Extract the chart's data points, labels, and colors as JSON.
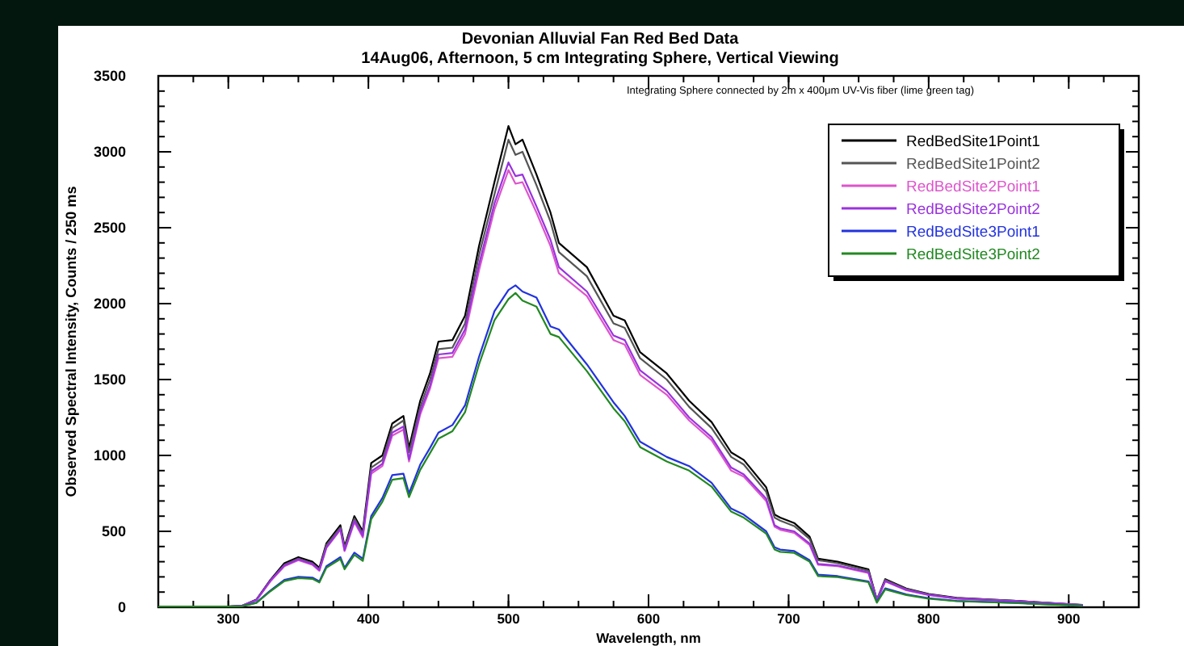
{
  "chart_data": {
    "type": "line",
    "title": "Devonian Alluvial Fan Red Bed Data",
    "subtitle": "14Aug06, Afternoon, 5 cm Integrating Sphere, Vertical Viewing",
    "xlabel": "Wavelength, nm",
    "ylabel": "Observed Spectral Intensity, Counts / 250 ms",
    "annotations": [
      "Integrating Sphere connected by 2m x 400μm UV-Vis fiber (lime green tag)"
    ],
    "x": [
      250,
      300,
      310,
      320,
      330,
      340,
      350,
      360,
      365,
      370,
      380,
      383,
      390,
      396,
      402,
      410,
      417,
      425,
      429,
      437,
      444,
      450,
      460,
      469,
      479,
      490,
      500,
      505,
      510,
      520,
      530,
      536,
      556,
      575,
      583,
      594,
      613,
      629,
      645,
      659,
      668,
      684,
      690,
      694,
      704,
      715,
      721,
      735,
      757,
      763,
      769,
      784,
      800,
      820,
      860,
      910
    ],
    "series": [
      {
        "name": "RedBedSite1Point1",
        "color": "#000000",
        "values": [
          5,
          5,
          10,
          50,
          180,
          290,
          330,
          300,
          260,
          420,
          540,
          400,
          600,
          500,
          950,
          1000,
          1210,
          1260,
          1050,
          1360,
          1540,
          1750,
          1760,
          1920,
          2380,
          2800,
          3170,
          3050,
          3080,
          2850,
          2600,
          2400,
          2240,
          1920,
          1890,
          1680,
          1540,
          1360,
          1220,
          1020,
          970,
          790,
          610,
          590,
          555,
          465,
          320,
          300,
          250,
          50,
          185,
          123,
          87,
          62,
          44,
          15
        ]
      },
      {
        "name": "RedBedSite1Point2",
        "color": "#555555",
        "values": [
          5,
          5,
          10,
          48,
          175,
          280,
          320,
          290,
          250,
          410,
          525,
          390,
          585,
          485,
          920,
          970,
          1180,
          1230,
          1020,
          1320,
          1500,
          1700,
          1710,
          1870,
          2320,
          2720,
          3080,
          2980,
          3000,
          2780,
          2540,
          2340,
          2180,
          1870,
          1840,
          1640,
          1500,
          1320,
          1180,
          990,
          940,
          760,
          590,
          570,
          535,
          450,
          310,
          290,
          240,
          48,
          180,
          120,
          85,
          60,
          43,
          14
        ]
      },
      {
        "name": "RedBedSite2Point1",
        "color": "#dd55cc",
        "values": [
          null,
          null,
          10,
          45,
          170,
          270,
          310,
          280,
          240,
          390,
          510,
          370,
          560,
          460,
          880,
          930,
          1130,
          1170,
          960,
          1270,
          1440,
          1640,
          1650,
          1800,
          2220,
          2620,
          2880,
          2790,
          2800,
          2600,
          2380,
          2200,
          2050,
          1760,
          1730,
          1530,
          1400,
          1230,
          1100,
          900,
          860,
          700,
          530,
          510,
          490,
          410,
          280,
          270,
          225,
          45,
          170,
          112,
          80,
          57,
          40,
          14
        ]
      },
      {
        "name": "RedBedSite2Point2",
        "color": "#9933dd",
        "values": [
          null,
          5,
          10,
          47,
          175,
          275,
          315,
          285,
          245,
          395,
          515,
          375,
          570,
          470,
          895,
          945,
          1150,
          1190,
          975,
          1290,
          1460,
          1665,
          1675,
          1830,
          2260,
          2660,
          2930,
          2840,
          2850,
          2640,
          2420,
          2240,
          2080,
          1790,
          1760,
          1560,
          1425,
          1250,
          1120,
          920,
          875,
          715,
          540,
          520,
          500,
          420,
          285,
          275,
          230,
          46,
          173,
          115,
          82,
          58,
          41,
          14
        ]
      },
      {
        "name": "RedBedSite3Point1",
        "color": "#2233dd",
        "values": [
          null,
          null,
          8,
          30,
          110,
          180,
          200,
          195,
          170,
          270,
          330,
          260,
          360,
          320,
          600,
          720,
          870,
          880,
          750,
          940,
          1050,
          1150,
          1200,
          1330,
          1650,
          1950,
          2090,
          2120,
          2080,
          2040,
          1850,
          1830,
          1600,
          1350,
          1260,
          1090,
          990,
          930,
          820,
          650,
          610,
          500,
          395,
          380,
          370,
          310,
          215,
          205,
          170,
          35,
          125,
          85,
          60,
          42,
          30,
          10
        ]
      },
      {
        "name": "RedBedSite3Point2",
        "color": "#228822",
        "values": [
          5,
          5,
          7,
          28,
          105,
          172,
          192,
          187,
          163,
          260,
          318,
          250,
          345,
          305,
          580,
          695,
          840,
          850,
          725,
          905,
          1015,
          1110,
          1160,
          1285,
          1600,
          1890,
          2030,
          2070,
          2020,
          1980,
          1800,
          1780,
          1555,
          1310,
          1225,
          1055,
          960,
          900,
          795,
          630,
          590,
          485,
          380,
          365,
          358,
          300,
          205,
          198,
          165,
          30,
          118,
          80,
          56,
          40,
          28,
          9
        ]
      }
    ],
    "xlim": [
      250,
      950
    ],
    "xticks": [
      300,
      400,
      500,
      600,
      700,
      800,
      900
    ],
    "ylim": [
      0,
      3500
    ],
    "yticks": [
      0,
      500,
      1000,
      1500,
      2000,
      2500,
      3000,
      3500
    ],
    "grid": false,
    "legend": "top right",
    "marker": "none",
    "line_style": "solid"
  }
}
